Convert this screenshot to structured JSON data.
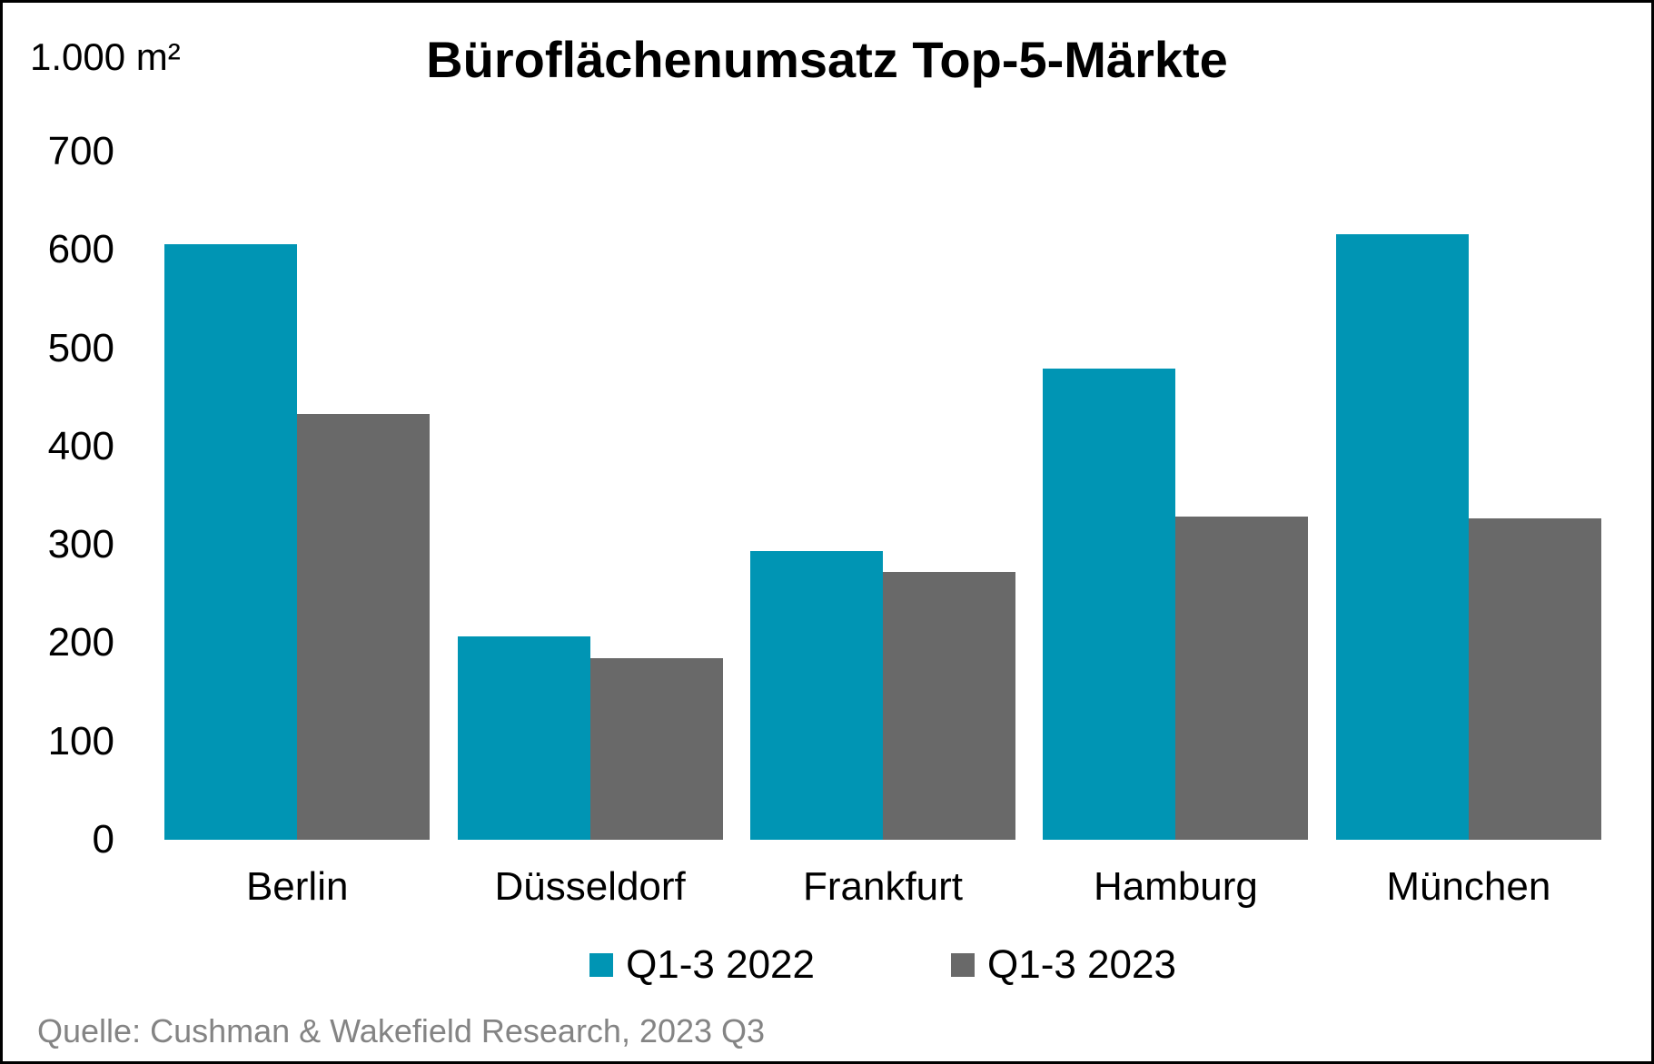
{
  "chart_data": {
    "type": "bar",
    "title": "Büroflächenumsatz Top-5-Märkte",
    "unit_label": "1.000 m²",
    "categories": [
      "Berlin",
      "Düsseldorf",
      "Frankfurt",
      "Hamburg",
      "München"
    ],
    "series": [
      {
        "name": "Q1-3 2022",
        "color": "#0095B4",
        "values": [
          606,
          207,
          294,
          479,
          616
        ]
      },
      {
        "name": "Q1-3 2023",
        "color": "#696969",
        "values": [
          433,
          185,
          272,
          329,
          327
        ]
      }
    ],
    "ylim": [
      0,
      700
    ],
    "yticks": [
      0,
      100,
      200,
      300,
      400,
      500,
      600,
      700
    ],
    "grid": false,
    "legend_position": "bottom"
  },
  "source": {
    "text": "Quelle: Cushman & Wakefield Research, 2023 Q3"
  },
  "colors": {
    "series_2022": "#0095B4",
    "series_2023": "#696969",
    "source_text": "#848484",
    "frame_border": "#000000",
    "background": "#FFFFFF"
  }
}
